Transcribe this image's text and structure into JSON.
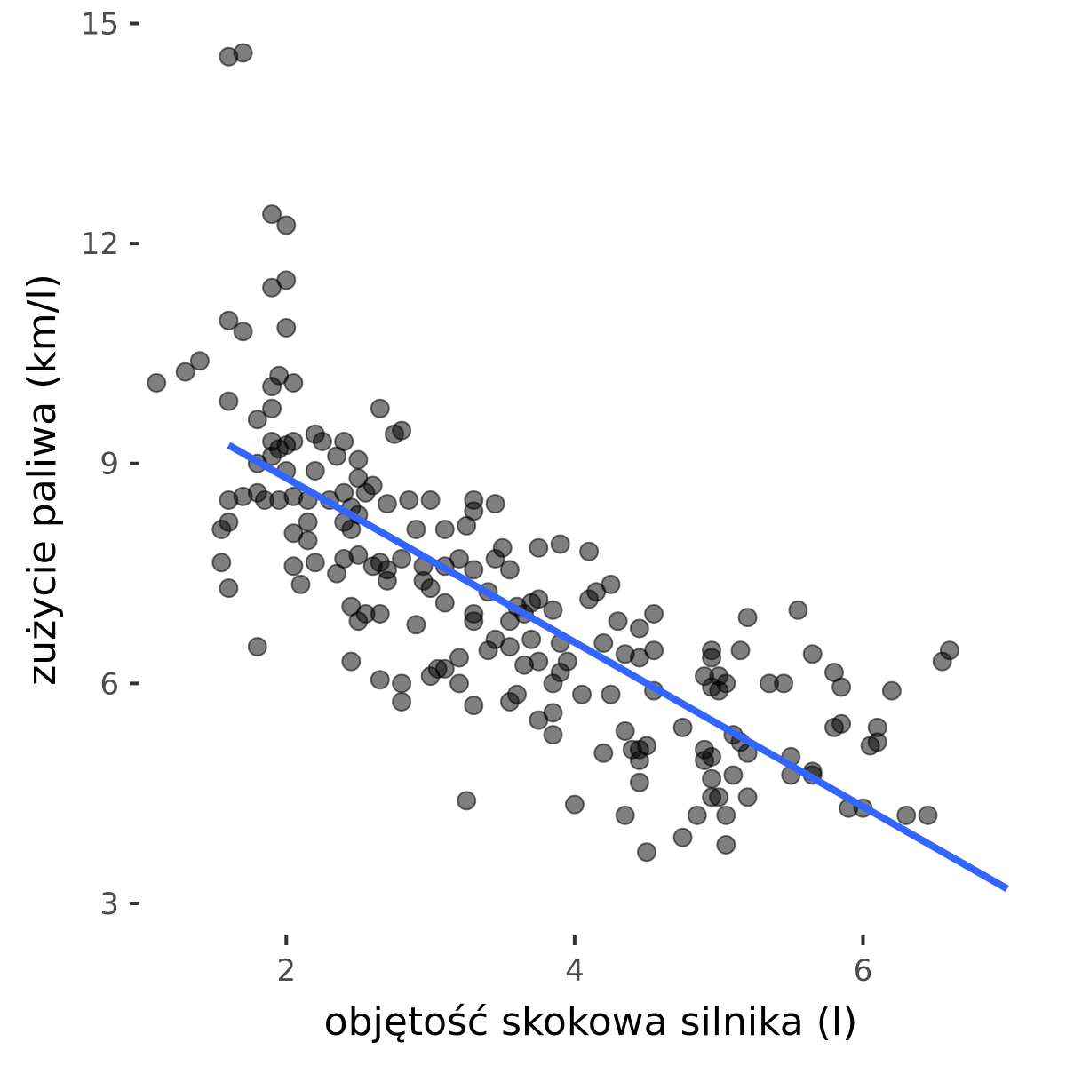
{
  "chart_data": {
    "type": "scatter",
    "xlabel": "objętość skokowa silnika (l)",
    "ylabel": "zużycie paliwa (km/l)",
    "xlim": [
      1.0,
      7.1
    ],
    "ylim": [
      2.6,
      15.2
    ],
    "xticks": [
      2,
      4,
      6
    ],
    "yticks": [
      3,
      6,
      9,
      12,
      15
    ],
    "grid": false,
    "legend": "none",
    "point_color": "#000000",
    "point_alpha": 0.5,
    "trend_line": {
      "color": "#3366ff",
      "x": [
        1.6,
        7.0
      ],
      "y": [
        9.25,
        3.2
      ]
    },
    "points": [
      [
        1.6,
        14.55
      ],
      [
        1.7,
        14.6
      ],
      [
        1.9,
        12.4
      ],
      [
        2.0,
        12.25
      ],
      [
        1.9,
        11.4
      ],
      [
        2.0,
        11.5
      ],
      [
        1.6,
        10.95
      ],
      [
        1.7,
        10.8
      ],
      [
        2.0,
        10.85
      ],
      [
        1.1,
        10.1
      ],
      [
        1.3,
        10.25
      ],
      [
        1.4,
        10.4
      ],
      [
        1.9,
        10.05
      ],
      [
        1.95,
        10.2
      ],
      [
        2.05,
        10.1
      ],
      [
        1.6,
        9.85
      ],
      [
        1.9,
        9.75
      ],
      [
        1.8,
        9.6
      ],
      [
        1.9,
        9.3
      ],
      [
        1.95,
        9.2
      ],
      [
        2.0,
        9.25
      ],
      [
        2.05,
        9.3
      ],
      [
        2.2,
        9.4
      ],
      [
        2.25,
        9.3
      ],
      [
        2.4,
        9.3
      ],
      [
        2.35,
        9.1
      ],
      [
        2.5,
        9.05
      ],
      [
        2.65,
        9.75
      ],
      [
        2.8,
        9.45
      ],
      [
        2.75,
        9.4
      ],
      [
        1.8,
        9.0
      ],
      [
        1.9,
        9.1
      ],
      [
        2.0,
        8.9
      ],
      [
        2.2,
        8.9
      ],
      [
        2.5,
        8.8
      ],
      [
        1.6,
        8.5
      ],
      [
        1.7,
        8.55
      ],
      [
        1.8,
        8.6
      ],
      [
        1.85,
        8.5
      ],
      [
        1.95,
        8.5
      ],
      [
        2.05,
        8.55
      ],
      [
        2.15,
        8.5
      ],
      [
        2.3,
        8.5
      ],
      [
        2.4,
        8.6
      ],
      [
        2.45,
        8.4
      ],
      [
        2.55,
        8.6
      ],
      [
        2.6,
        8.7
      ],
      [
        2.7,
        8.45
      ],
      [
        2.85,
        8.5
      ],
      [
        3.0,
        8.5
      ],
      [
        3.3,
        8.5
      ],
      [
        3.45,
        8.45
      ],
      [
        3.3,
        8.35
      ],
      [
        1.55,
        8.1
      ],
      [
        1.6,
        8.2
      ],
      [
        2.05,
        8.05
      ],
      [
        2.15,
        8.2
      ],
      [
        2.4,
        8.2
      ],
      [
        2.45,
        8.1
      ],
      [
        2.5,
        8.3
      ],
      [
        2.9,
        8.1
      ],
      [
        3.1,
        8.1
      ],
      [
        3.25,
        8.15
      ],
      [
        2.15,
        7.95
      ],
      [
        3.5,
        7.85
      ],
      [
        3.75,
        7.85
      ],
      [
        3.9,
        7.9
      ],
      [
        4.1,
        7.8
      ],
      [
        1.55,
        7.65
      ],
      [
        2.05,
        7.6
      ],
      [
        2.2,
        7.65
      ],
      [
        2.35,
        7.5
      ],
      [
        2.4,
        7.7
      ],
      [
        2.5,
        7.75
      ],
      [
        2.6,
        7.6
      ],
      [
        2.65,
        7.65
      ],
      [
        2.7,
        7.55
      ],
      [
        2.8,
        7.7
      ],
      [
        2.95,
        7.6
      ],
      [
        3.1,
        7.6
      ],
      [
        3.2,
        7.7
      ],
      [
        3.3,
        7.55
      ],
      [
        3.45,
        7.7
      ],
      [
        3.55,
        7.55
      ],
      [
        2.1,
        7.35
      ],
      [
        1.6,
        7.3
      ],
      [
        2.7,
        7.4
      ],
      [
        2.95,
        7.4
      ],
      [
        3.0,
        7.3
      ],
      [
        3.4,
        7.25
      ],
      [
        3.7,
        7.1
      ],
      [
        3.75,
        7.15
      ],
      [
        3.6,
        7.05
      ],
      [
        3.85,
        7.0
      ],
      [
        4.1,
        7.15
      ],
      [
        4.15,
        7.25
      ],
      [
        4.25,
        7.35
      ],
      [
        2.45,
        7.05
      ],
      [
        2.55,
        6.95
      ],
      [
        2.65,
        6.95
      ],
      [
        2.5,
        6.85
      ],
      [
        3.1,
        7.1
      ],
      [
        3.3,
        6.95
      ],
      [
        3.3,
        6.85
      ],
      [
        3.55,
        6.85
      ],
      [
        3.65,
        6.95
      ],
      [
        4.3,
        6.85
      ],
      [
        4.45,
        6.75
      ],
      [
        4.55,
        6.95
      ],
      [
        5.2,
        6.9
      ],
      [
        5.55,
        7.0
      ],
      [
        1.8,
        6.5
      ],
      [
        2.9,
        6.8
      ],
      [
        3.45,
        6.6
      ],
      [
        3.7,
        6.6
      ],
      [
        3.55,
        6.5
      ],
      [
        3.4,
        6.45
      ],
      [
        3.9,
        6.55
      ],
      [
        4.2,
        6.55
      ],
      [
        4.35,
        6.4
      ],
      [
        4.45,
        6.35
      ],
      [
        4.55,
        6.45
      ],
      [
        4.95,
        6.45
      ],
      [
        5.15,
        6.45
      ],
      [
        5.65,
        6.4
      ],
      [
        2.45,
        6.3
      ],
      [
        3.2,
        6.35
      ],
      [
        3.1,
        6.2
      ],
      [
        3.05,
        6.2
      ],
      [
        3.65,
        6.25
      ],
      [
        3.75,
        6.3
      ],
      [
        3.9,
        6.15
      ],
      [
        3.95,
        6.3
      ],
      [
        4.9,
        6.1
      ],
      [
        4.95,
        6.35
      ],
      [
        5.0,
        6.1
      ],
      [
        5.05,
        6.0
      ],
      [
        5.8,
        6.15
      ],
      [
        6.55,
        6.3
      ],
      [
        6.6,
        6.45
      ],
      [
        2.65,
        6.05
      ],
      [
        2.8,
        6.0
      ],
      [
        3.0,
        6.1
      ],
      [
        3.2,
        6.0
      ],
      [
        3.6,
        5.85
      ],
      [
        3.85,
        6.0
      ],
      [
        4.05,
        5.85
      ],
      [
        4.25,
        5.85
      ],
      [
        4.55,
        5.9
      ],
      [
        4.95,
        5.95
      ],
      [
        5.0,
        5.9
      ],
      [
        5.35,
        6.0
      ],
      [
        5.45,
        6.0
      ],
      [
        5.85,
        5.95
      ],
      [
        6.2,
        5.9
      ],
      [
        2.8,
        5.75
      ],
      [
        3.3,
        5.7
      ],
      [
        3.55,
        5.75
      ],
      [
        3.75,
        5.5
      ],
      [
        3.85,
        5.6
      ],
      [
        3.85,
        5.3
      ],
      [
        4.35,
        5.35
      ],
      [
        4.75,
        5.4
      ],
      [
        5.1,
        5.3
      ],
      [
        5.15,
        5.2
      ],
      [
        5.2,
        5.05
      ],
      [
        4.4,
        5.1
      ],
      [
        4.45,
        5.1
      ],
      [
        4.5,
        5.15
      ],
      [
        4.2,
        5.05
      ],
      [
        4.9,
        5.1
      ],
      [
        4.9,
        4.95
      ],
      [
        4.95,
        5.0
      ],
      [
        5.5,
        5.0
      ],
      [
        5.65,
        4.8
      ],
      [
        5.8,
        5.4
      ],
      [
        5.85,
        5.45
      ],
      [
        6.05,
        5.15
      ],
      [
        6.1,
        5.2
      ],
      [
        6.1,
        5.4
      ],
      [
        4.45,
        4.95
      ],
      [
        4.45,
        4.65
      ],
      [
        4.95,
        4.7
      ],
      [
        5.1,
        4.75
      ],
      [
        5.5,
        4.75
      ],
      [
        5.65,
        4.75
      ],
      [
        4.95,
        4.45
      ],
      [
        5.0,
        4.45
      ],
      [
        5.2,
        4.45
      ],
      [
        3.25,
        4.4
      ],
      [
        4.0,
        4.35
      ],
      [
        5.9,
        4.3
      ],
      [
        6.0,
        4.3
      ],
      [
        6.3,
        4.2
      ],
      [
        6.45,
        4.2
      ],
      [
        4.35,
        4.2
      ],
      [
        4.85,
        4.2
      ],
      [
        5.05,
        4.2
      ],
      [
        4.75,
        3.9
      ],
      [
        5.05,
        3.8
      ],
      [
        4.5,
        3.7
      ]
    ]
  }
}
